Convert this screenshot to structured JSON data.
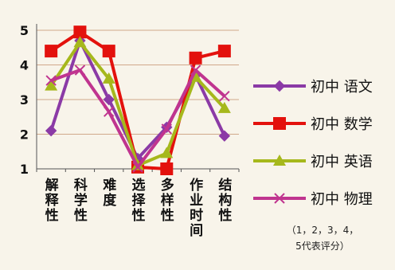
{
  "chart_data": {
    "type": "line",
    "categories": [
      "解释性",
      "科学性",
      "难度",
      "选择性",
      "多样性",
      "作业时间",
      "结构性"
    ],
    "ylim": [
      1,
      5
    ],
    "yticks": [
      "1",
      "2",
      "3",
      "4",
      "5"
    ],
    "grid": true,
    "legend_position": "right",
    "series": [
      {
        "name": "初中 语文",
        "color": "#8b3aa6",
        "marker": "diamond",
        "values": [
          2.1,
          4.7,
          3.0,
          1.3,
          2.2,
          3.7,
          1.95
        ]
      },
      {
        "name": "初中 数学",
        "color": "#e3110d",
        "marker": "square",
        "values": [
          4.4,
          4.95,
          4.4,
          1.05,
          1.0,
          4.2,
          4.4
        ]
      },
      {
        "name": "初中 英语",
        "color": "#a6b81c",
        "marker": "triangle",
        "values": [
          3.4,
          4.65,
          3.6,
          1.1,
          1.45,
          3.65,
          2.75
        ]
      },
      {
        "name": "初中 物理",
        "color": "#c0348f",
        "marker": "x",
        "values": [
          3.55,
          3.85,
          2.65,
          1.05,
          2.15,
          3.85,
          3.1
        ]
      }
    ],
    "annotation": "（1，2，3，4，5代表评分）"
  }
}
